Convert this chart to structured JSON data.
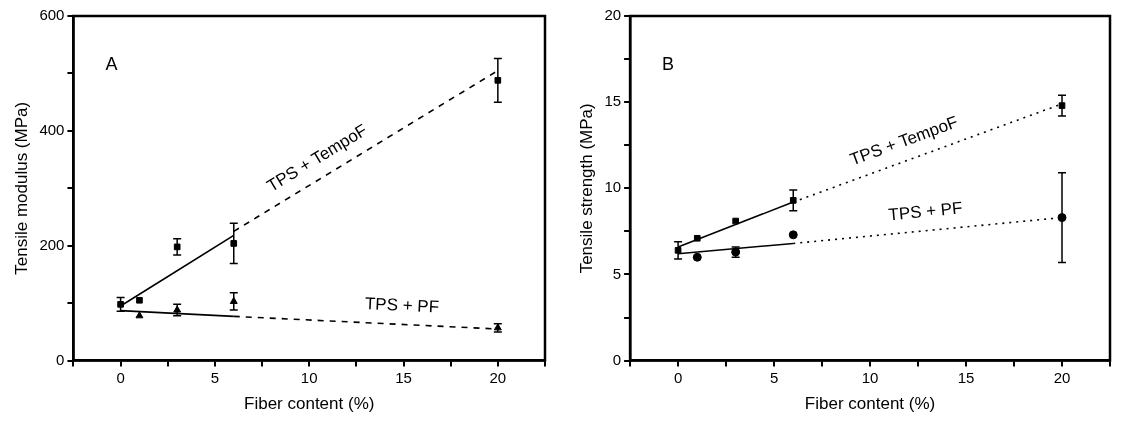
{
  "chart_data": [
    {
      "type": "scatter",
      "xlabel": "Fiber content (%)",
      "ylabel": "Tensile modulus (MPa)",
      "annotations": [
        "A",
        {
          "text": "TPS + TempoF",
          "x": 11.4,
          "y": 333
        },
        {
          "text": "TPS + PF",
          "x": 15.4,
          "y": 62
        }
      ],
      "xlim": [
        -2.5,
        22.5
      ],
      "xticks": [
        {
          "value": -2.5,
          "label": null
        },
        0,
        {
          "value": 2.5,
          "label": null
        },
        5,
        {
          "value": 7.5,
          "label": null
        },
        10,
        {
          "value": 12.5,
          "label": null
        },
        15,
        {
          "value": 17.5,
          "label": null
        },
        20,
        {
          "value": 22.5,
          "label": null
        }
      ],
      "ylim": [
        0,
        600
      ],
      "yticks": [
        0,
        {
          "value": 100,
          "label": null
        },
        200,
        {
          "value": 300,
          "label": null
        },
        400,
        {
          "value": 500,
          "label": null
        },
        600
      ],
      "series": [
        {
          "marker": "square",
          "color": "#000000",
          "x": [
            0,
            1,
            3,
            6,
            20
          ],
          "values": [
            98,
            105,
            198,
            204,
            488
          ],
          "errors": [
            12,
            null,
            14,
            35,
            38
          ]
        },
        {
          "marker": "triangle",
          "color": "#000000",
          "x": [
            1,
            3,
            6,
            20
          ],
          "values": [
            78,
            88,
            103,
            57
          ],
          "errors": [
            null,
            10,
            15,
            7
          ]
        },
        {
          "type": "line",
          "line_style": "solid",
          "color": "#000000",
          "x": [
            0,
            6
          ],
          "values": [
            95,
            218
          ]
        },
        {
          "type": "line",
          "line_style": "dashed",
          "color": "#000000",
          "x": [
            6,
            20
          ],
          "values": [
            225,
            505
          ]
        },
        {
          "type": "line",
          "line_style": "solid",
          "color": "#000000",
          "x": [
            0,
            6
          ],
          "values": [
            87,
            77
          ]
        },
        {
          "type": "line",
          "line_style": "dashed",
          "color": "#000000",
          "x": [
            6,
            20
          ],
          "values": [
            77,
            55
          ]
        }
      ]
    },
    {
      "type": "scatter",
      "xlabel": "Fiber content (%)",
      "ylabel": "Tensile strength (MPa)",
      "annotations": [
        "B",
        {
          "text": "TPS + TempoF",
          "x": 12.6,
          "y": 11.9
        },
        {
          "text": "TPS + PF",
          "x": 13.5,
          "y": 7.6
        }
      ],
      "xlim": [
        -2.5,
        22.5
      ],
      "xticks": [
        {
          "value": -2.5,
          "label": null
        },
        0,
        {
          "value": 2.5,
          "label": null
        },
        5,
        {
          "value": 7.5,
          "label": null
        },
        10,
        {
          "value": 12.5,
          "label": null
        },
        15,
        {
          "value": 17.5,
          "label": null
        },
        20,
        {
          "value": 22.5,
          "label": null
        }
      ],
      "ylim": [
        0,
        20
      ],
      "yticks": [
        0,
        {
          "value": 2.5,
          "label": null
        },
        5,
        {
          "value": 7.5,
          "label": null
        },
        10,
        {
          "value": 12.5,
          "label": null
        },
        15,
        {
          "value": 17.5,
          "label": null
        },
        20
      ],
      "series": [
        {
          "marker": "square",
          "color": "#000000",
          "x": [
            0,
            1,
            3,
            6,
            20
          ],
          "values": [
            6.4,
            7.1,
            8.1,
            9.3,
            14.8
          ],
          "errors": [
            0.5,
            null,
            null,
            0.6,
            0.6
          ]
        },
        {
          "marker": "circle",
          "color": "#000000",
          "x": [
            1,
            3,
            6,
            20
          ],
          "values": [
            6.0,
            6.3,
            7.3,
            8.3
          ],
          "errors": [
            null,
            0.3,
            null,
            2.6
          ]
        },
        {
          "type": "line",
          "line_style": "solid",
          "color": "#000000",
          "x": [
            0,
            6
          ],
          "values": [
            6.6,
            9.2
          ]
        },
        {
          "type": "line",
          "line_style": "dotted",
          "color": "#000000",
          "x": [
            6,
            20
          ],
          "values": [
            9.2,
            14.9
          ]
        },
        {
          "type": "line",
          "line_style": "solid",
          "color": "#000000",
          "x": [
            0,
            6
          ],
          "values": [
            6.2,
            6.8
          ]
        },
        {
          "type": "line",
          "line_style": "dotted",
          "color": "#000000",
          "x": [
            6,
            20
          ],
          "values": [
            6.8,
            8.3
          ]
        }
      ]
    }
  ]
}
